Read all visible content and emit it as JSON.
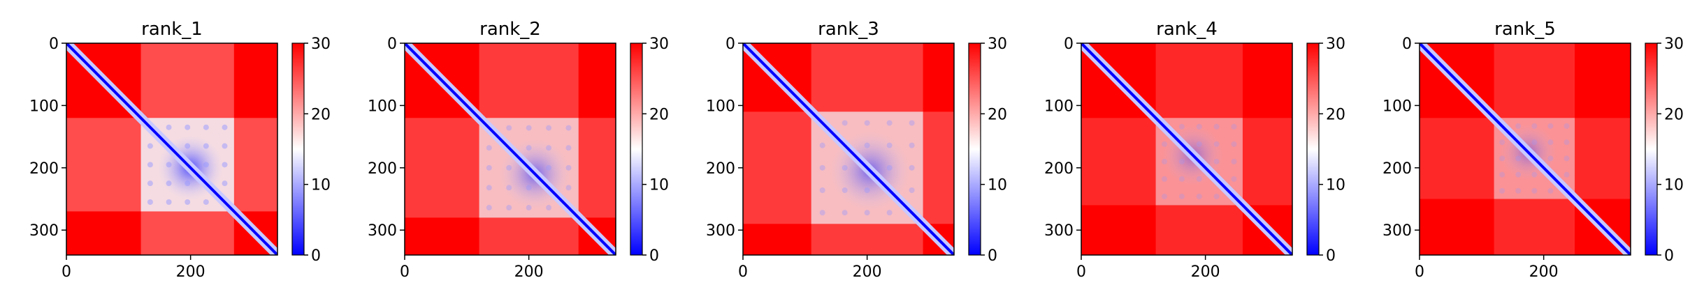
{
  "chart_data": [
    {
      "type": "heatmap",
      "title": "rank_1",
      "x_ticks": [
        0,
        200
      ],
      "y_ticks": [
        0,
        100,
        200,
        300
      ],
      "xlim": [
        0,
        340
      ],
      "ylim": [
        340,
        0
      ],
      "colorbar": {
        "vmin": 0,
        "vmax": 30,
        "ticks": [
          0,
          10,
          20,
          30
        ],
        "colormap": "bwr",
        "low_color": "#0000ff",
        "mid_color": "#ffffff",
        "high_color": "#ff0000"
      },
      "features": {
        "diagonal": true,
        "block": {
          "start": 120,
          "end": 270,
          "center": 200,
          "strength": "strong"
        }
      }
    },
    {
      "type": "heatmap",
      "title": "rank_2",
      "x_ticks": [
        0,
        200
      ],
      "y_ticks": [
        0,
        100,
        200,
        300
      ],
      "xlim": [
        0,
        340
      ],
      "ylim": [
        340,
        0
      ],
      "colorbar": {
        "vmin": 0,
        "vmax": 30,
        "ticks": [
          0,
          10,
          20,
          30
        ],
        "colormap": "bwr",
        "low_color": "#0000ff",
        "mid_color": "#ffffff",
        "high_color": "#ff0000"
      },
      "features": {
        "diagonal": true,
        "block": {
          "start": 120,
          "end": 280,
          "center": 210,
          "strength": "medium"
        }
      }
    },
    {
      "type": "heatmap",
      "title": "rank_3",
      "x_ticks": [
        0,
        200
      ],
      "y_ticks": [
        0,
        100,
        200,
        300
      ],
      "xlim": [
        0,
        340
      ],
      "ylim": [
        340,
        0
      ],
      "colorbar": {
        "vmin": 0,
        "vmax": 30,
        "ticks": [
          0,
          10,
          20,
          30
        ],
        "colormap": "bwr",
        "low_color": "#0000ff",
        "mid_color": "#ffffff",
        "high_color": "#ff0000"
      },
      "features": {
        "diagonal": true,
        "block": {
          "start": 110,
          "end": 290,
          "center": 205,
          "strength": "medium"
        }
      }
    },
    {
      "type": "heatmap",
      "title": "rank_4",
      "x_ticks": [
        0,
        200
      ],
      "y_ticks": [
        0,
        100,
        200,
        300
      ],
      "xlim": [
        0,
        340
      ],
      "ylim": [
        340,
        0
      ],
      "colorbar": {
        "vmin": 0,
        "vmax": 30,
        "ticks": [
          0,
          10,
          20,
          30
        ],
        "colormap": "bwr",
        "low_color": "#0000ff",
        "mid_color": "#ffffff",
        "high_color": "#ff0000"
      },
      "features": {
        "diagonal": true,
        "block": {
          "start": 120,
          "end": 260,
          "center": 180,
          "strength": "weak"
        }
      }
    },
    {
      "type": "heatmap",
      "title": "rank_5",
      "x_ticks": [
        0,
        200
      ],
      "y_ticks": [
        0,
        100,
        200,
        300
      ],
      "xlim": [
        0,
        340
      ],
      "ylim": [
        340,
        0
      ],
      "colorbar": {
        "vmin": 0,
        "vmax": 30,
        "ticks": [
          0,
          10,
          20,
          30
        ],
        "colormap": "bwr",
        "low_color": "#0000ff",
        "mid_color": "#ffffff",
        "high_color": "#ff0000"
      },
      "features": {
        "diagonal": true,
        "block": {
          "start": 120,
          "end": 250,
          "center": 175,
          "strength": "weak"
        }
      }
    }
  ]
}
